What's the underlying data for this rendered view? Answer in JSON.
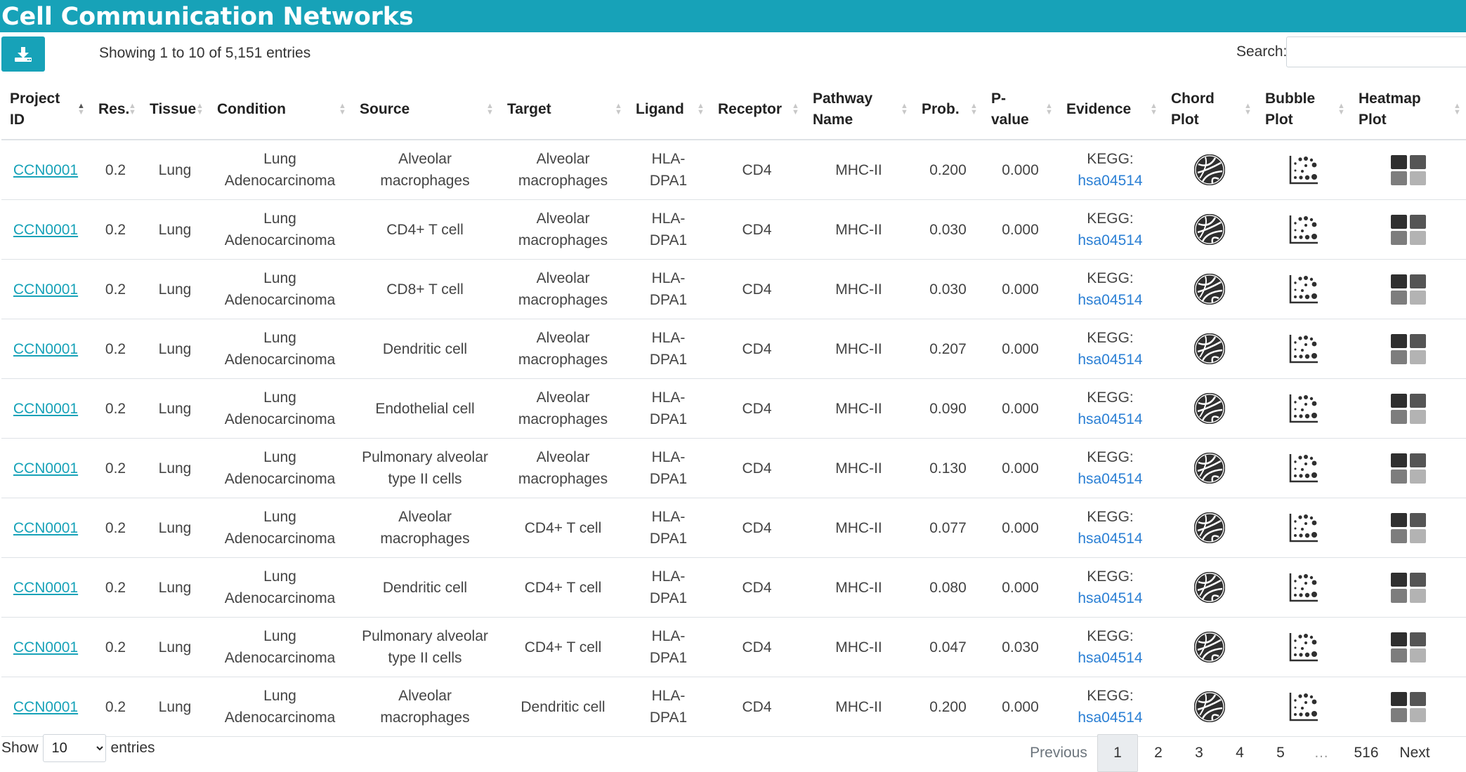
{
  "title": "Cell Communication Networks",
  "info": "Showing 1 to 10 of 5,151 entries",
  "search": {
    "label": "Search:",
    "value": ""
  },
  "columns": [
    "Project ID",
    "Res.",
    "Tissue",
    "Condition",
    "Source",
    "Target",
    "Ligand",
    "Receptor",
    "Pathway Name",
    "Prob.",
    "P-value",
    "Evidence",
    "Chord Plot",
    "Bubble Plot",
    "Heatmap Plot"
  ],
  "rows": [
    {
      "project_id": "CCN0001",
      "res": "0.2",
      "tissue": "Lung",
      "condition": "Lung Adenocarcinoma",
      "source": "Alveolar macrophages",
      "target": "Alveolar macrophages",
      "ligand": "HLA-DPA1",
      "receptor": "CD4",
      "pathway": "MHC-II",
      "prob": "0.200",
      "pvalue": "0.000",
      "evidence_prefix": "KEGG:",
      "evidence_id": "hsa04514"
    },
    {
      "project_id": "CCN0001",
      "res": "0.2",
      "tissue": "Lung",
      "condition": "Lung Adenocarcinoma",
      "source": "CD4+ T cell",
      "target": "Alveolar macrophages",
      "ligand": "HLA-DPA1",
      "receptor": "CD4",
      "pathway": "MHC-II",
      "prob": "0.030",
      "pvalue": "0.000",
      "evidence_prefix": "KEGG:",
      "evidence_id": "hsa04514"
    },
    {
      "project_id": "CCN0001",
      "res": "0.2",
      "tissue": "Lung",
      "condition": "Lung Adenocarcinoma",
      "source": "CD8+ T cell",
      "target": "Alveolar macrophages",
      "ligand": "HLA-DPA1",
      "receptor": "CD4",
      "pathway": "MHC-II",
      "prob": "0.030",
      "pvalue": "0.000",
      "evidence_prefix": "KEGG:",
      "evidence_id": "hsa04514"
    },
    {
      "project_id": "CCN0001",
      "res": "0.2",
      "tissue": "Lung",
      "condition": "Lung Adenocarcinoma",
      "source": "Dendritic cell",
      "target": "Alveolar macrophages",
      "ligand": "HLA-DPA1",
      "receptor": "CD4",
      "pathway": "MHC-II",
      "prob": "0.207",
      "pvalue": "0.000",
      "evidence_prefix": "KEGG:",
      "evidence_id": "hsa04514"
    },
    {
      "project_id": "CCN0001",
      "res": "0.2",
      "tissue": "Lung",
      "condition": "Lung Adenocarcinoma",
      "source": "Endothelial cell",
      "target": "Alveolar macrophages",
      "ligand": "HLA-DPA1",
      "receptor": "CD4",
      "pathway": "MHC-II",
      "prob": "0.090",
      "pvalue": "0.000",
      "evidence_prefix": "KEGG:",
      "evidence_id": "hsa04514"
    },
    {
      "project_id": "CCN0001",
      "res": "0.2",
      "tissue": "Lung",
      "condition": "Lung Adenocarcinoma",
      "source": "Pulmonary alveolar type II cells",
      "target": "Alveolar macrophages",
      "ligand": "HLA-DPA1",
      "receptor": "CD4",
      "pathway": "MHC-II",
      "prob": "0.130",
      "pvalue": "0.000",
      "evidence_prefix": "KEGG:",
      "evidence_id": "hsa04514"
    },
    {
      "project_id": "CCN0001",
      "res": "0.2",
      "tissue": "Lung",
      "condition": "Lung Adenocarcinoma",
      "source": "Alveolar macrophages",
      "target": "CD4+ T cell",
      "ligand": "HLA-DPA1",
      "receptor": "CD4",
      "pathway": "MHC-II",
      "prob": "0.077",
      "pvalue": "0.000",
      "evidence_prefix": "KEGG:",
      "evidence_id": "hsa04514"
    },
    {
      "project_id": "CCN0001",
      "res": "0.2",
      "tissue": "Lung",
      "condition": "Lung Adenocarcinoma",
      "source": "Dendritic cell",
      "target": "CD4+ T cell",
      "ligand": "HLA-DPA1",
      "receptor": "CD4",
      "pathway": "MHC-II",
      "prob": "0.080",
      "pvalue": "0.000",
      "evidence_prefix": "KEGG:",
      "evidence_id": "hsa04514"
    },
    {
      "project_id": "CCN0001",
      "res": "0.2",
      "tissue": "Lung",
      "condition": "Lung Adenocarcinoma",
      "source": "Pulmonary alveolar type II cells",
      "target": "CD4+ T cell",
      "ligand": "HLA-DPA1",
      "receptor": "CD4",
      "pathway": "MHC-II",
      "prob": "0.047",
      "pvalue": "0.030",
      "evidence_prefix": "KEGG:",
      "evidence_id": "hsa04514"
    },
    {
      "project_id": "CCN0001",
      "res": "0.2",
      "tissue": "Lung",
      "condition": "Lung Adenocarcinoma",
      "source": "Alveolar macrophages",
      "target": "Dendritic cell",
      "ligand": "HLA-DPA1",
      "receptor": "CD4",
      "pathway": "MHC-II",
      "prob": "0.200",
      "pvalue": "0.000",
      "evidence_prefix": "KEGG:",
      "evidence_id": "hsa04514"
    }
  ],
  "footer": {
    "show_label": "Show",
    "entries_label": "entries",
    "page_size": "10",
    "previous": "Previous",
    "pages": [
      "1",
      "2",
      "3",
      "4",
      "5"
    ],
    "ellipsis": "…",
    "last_page": "516",
    "next": "Next",
    "current_page": "1"
  },
  "icons": {
    "download": "download-icon",
    "chord": "chord-plot-icon",
    "bubble": "bubble-plot-icon",
    "heatmap": "heatmap-plot-icon"
  },
  "colors": {
    "accent": "#17a2b8",
    "link": "#2a7fd4"
  }
}
